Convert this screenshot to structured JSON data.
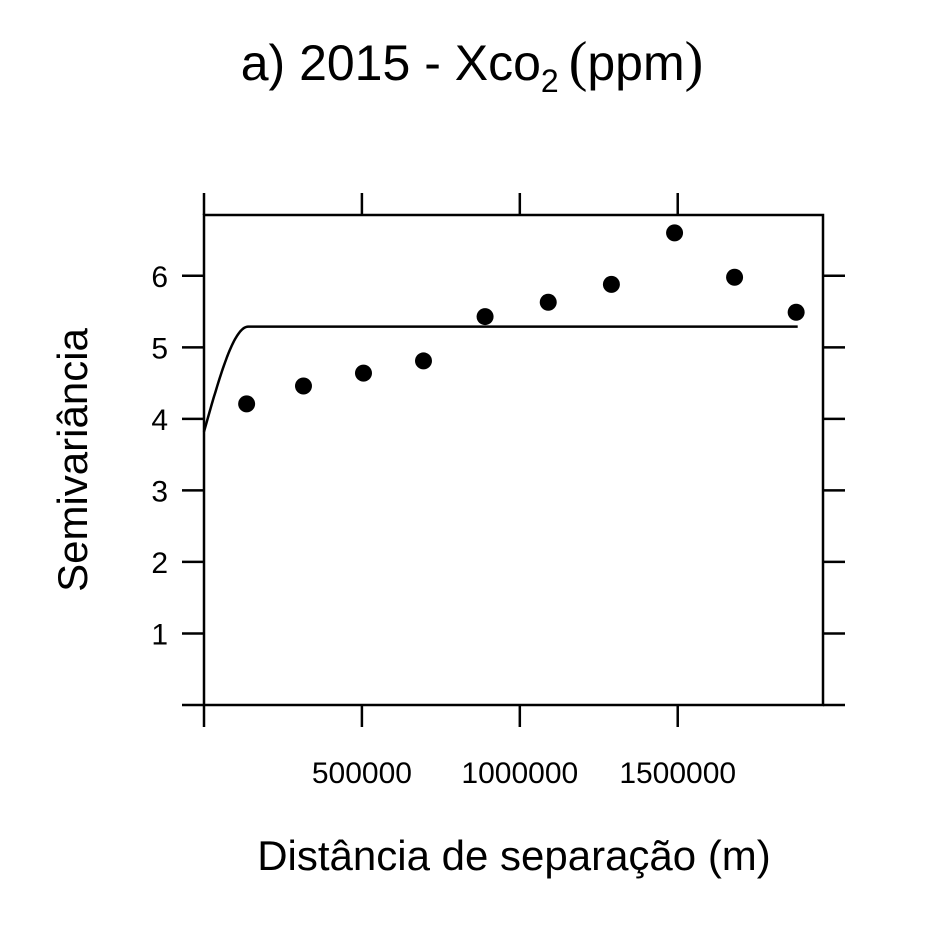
{
  "chart_data": {
    "type": "scatter",
    "title": {
      "prefix": "a) 2015 - Xco",
      "subscript": "2",
      "open_paren": "(",
      "unit": "ppm",
      "close_paren": ")"
    },
    "xlabel": "Distância de separação (m)",
    "ylabel": "Semivariância",
    "xlim": [
      0,
      1960000
    ],
    "ylim": [
      0,
      6.85
    ],
    "x_ticks": [
      500000,
      1000000,
      1500000
    ],
    "x_tick_labels": [
      "500000",
      "1000000",
      "1500000"
    ],
    "y_ticks": [
      1,
      2,
      3,
      4,
      5,
      6
    ],
    "y_tick_labels": [
      "1",
      "2",
      "3",
      "4",
      "5",
      "6"
    ],
    "grid": false,
    "series": [
      {
        "kind": "points",
        "x": [
          135000,
          315000,
          505000,
          695000,
          890000,
          1090000,
          1290000,
          1490000,
          1680000,
          1875000
        ],
        "y": [
          4.21,
          4.46,
          4.64,
          4.81,
          5.43,
          5.63,
          5.88,
          6.6,
          5.98,
          5.49
        ]
      },
      {
        "kind": "line",
        "model": "spherical",
        "nugget": 3.82,
        "sill": 5.29,
        "range": 140000,
        "x_end": 1880000
      }
    ]
  }
}
